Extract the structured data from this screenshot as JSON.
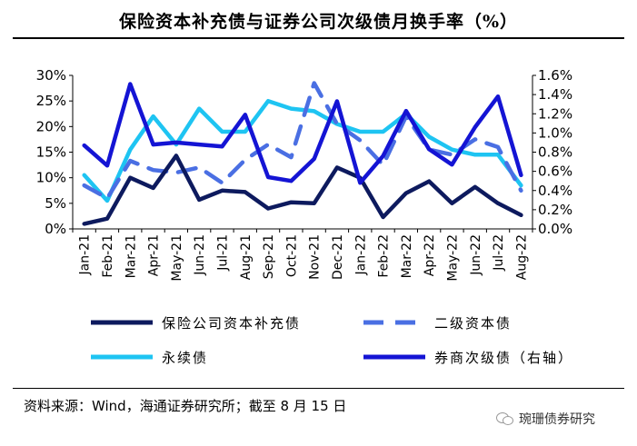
{
  "title": "保险资本补充债与证券公司次级债月换手率（%）",
  "source": "资料来源：Wind，海通证券研究所；截至 8 月 15 日",
  "watermark": "琬珊债券研究",
  "chart_data": {
    "type": "line",
    "categories": [
      "Jan-21",
      "Feb-21",
      "Mar-21",
      "Apr-21",
      "May-21",
      "Jun-21",
      "Jul-21",
      "Aug-21",
      "Sep-21",
      "Oct-21",
      "Nov-21",
      "Dec-21",
      "Jan-22",
      "Feb-22",
      "Mar-22",
      "Apr-22",
      "May-22",
      "Jun-22",
      "Jul-22",
      "Aug-22"
    ],
    "left_axis": {
      "ticks": [
        "0%",
        "5%",
        "10%",
        "15%",
        "20%",
        "25%",
        "30%"
      ],
      "ylim": [
        0,
        30
      ]
    },
    "right_axis": {
      "ticks": [
        "0.0%",
        "0.2%",
        "0.4%",
        "0.6%",
        "0.8%",
        "1.0%",
        "1.2%",
        "1.4%",
        "1.6%"
      ],
      "ylim": [
        0,
        1.6
      ]
    },
    "series": [
      {
        "name": "保险公司资本补充债",
        "axis": "left",
        "style": "solid",
        "color": "#0d1a5e",
        "values": [
          1.0,
          2.0,
          10.0,
          8.0,
          14.3,
          5.7,
          7.5,
          7.2,
          4.0,
          5.2,
          5.0,
          12.0,
          10.0,
          2.3,
          7.0,
          9.3,
          5.0,
          8.2,
          5.0,
          2.7
        ]
      },
      {
        "name": "二级资本债",
        "axis": "left",
        "style": "dashed",
        "color": "#4a6fe3",
        "values": [
          8.5,
          6.0,
          13.3,
          11.5,
          11.0,
          12.0,
          9.0,
          13.5,
          16.5,
          14.0,
          28.5,
          20.5,
          17.3,
          12.5,
          22.0,
          15.5,
          14.5,
          17.5,
          16.0,
          7.5
        ]
      },
      {
        "name": "永续债",
        "axis": "left",
        "style": "solid",
        "color": "#1ec4f2",
        "values": [
          10.5,
          5.5,
          15.5,
          22.0,
          16.5,
          23.5,
          19.0,
          19.0,
          25.0,
          23.5,
          23.0,
          20.5,
          19.0,
          19.0,
          22.5,
          18.0,
          15.5,
          14.5,
          14.5,
          8.5
        ]
      },
      {
        "name": "券商次级债（右轴）",
        "axis": "right",
        "style": "solid",
        "color": "#1414d4",
        "values": [
          0.87,
          0.66,
          1.51,
          0.88,
          0.9,
          0.88,
          0.86,
          1.19,
          0.54,
          0.5,
          0.73,
          1.33,
          0.48,
          0.76,
          1.23,
          0.83,
          0.67,
          1.06,
          1.38,
          0.56
        ]
      }
    ],
    "legend_position": "bottom",
    "grid": false
  }
}
